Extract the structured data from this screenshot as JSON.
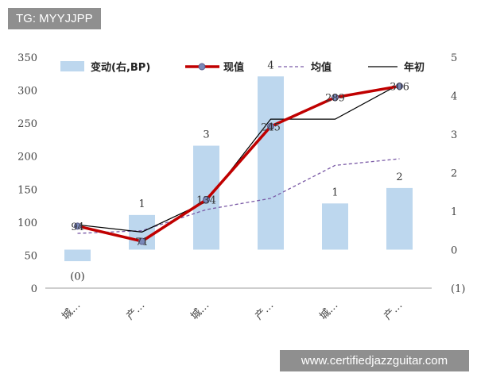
{
  "watermarks": {
    "top": "TG: MYYJJPP",
    "bottom": "www.certifiedjazzguitar.com"
  },
  "chart_data": {
    "type": "bar",
    "title": "",
    "xlabel": "",
    "ylabel": "",
    "categories": [
      "城…",
      "产…",
      "城…",
      "产…",
      "城…",
      "产…"
    ],
    "ylim": [
      0,
      350
    ],
    "y_ticks": [
      0,
      50,
      100,
      150,
      200,
      250,
      300,
      350
    ],
    "y2lim": [
      -1,
      5
    ],
    "y2_ticks": [
      "(1)",
      "0",
      "1",
      "2",
      "3",
      "4",
      "5"
    ],
    "legend_position": "top",
    "series": [
      {
        "name": "变动(右,BP)",
        "axis": "right",
        "kind": "bar",
        "values": [
          -0.3,
          0.9,
          2.7,
          4.5,
          1.2,
          1.6
        ],
        "labels": [
          "(0)",
          "1",
          "3",
          "4",
          "1",
          "2"
        ],
        "color": "#bdd7ee"
      },
      {
        "name": "现值",
        "axis": "left",
        "kind": "line-marker",
        "values": [
          94,
          71,
          134,
          245,
          289,
          306
        ],
        "labels": [
          "94",
          "71",
          "134",
          "245",
          "289",
          "306"
        ],
        "color": "#c00000"
      },
      {
        "name": "均值",
        "axis": "left",
        "kind": "dashed-line",
        "values": [
          83,
          87,
          119,
          136,
          186,
          196
        ],
        "color": "#7a5aa6"
      },
      {
        "name": "年初",
        "axis": "left",
        "kind": "line",
        "values": [
          96,
          85,
          131,
          256,
          256,
          309
        ],
        "color": "#000000"
      }
    ]
  }
}
